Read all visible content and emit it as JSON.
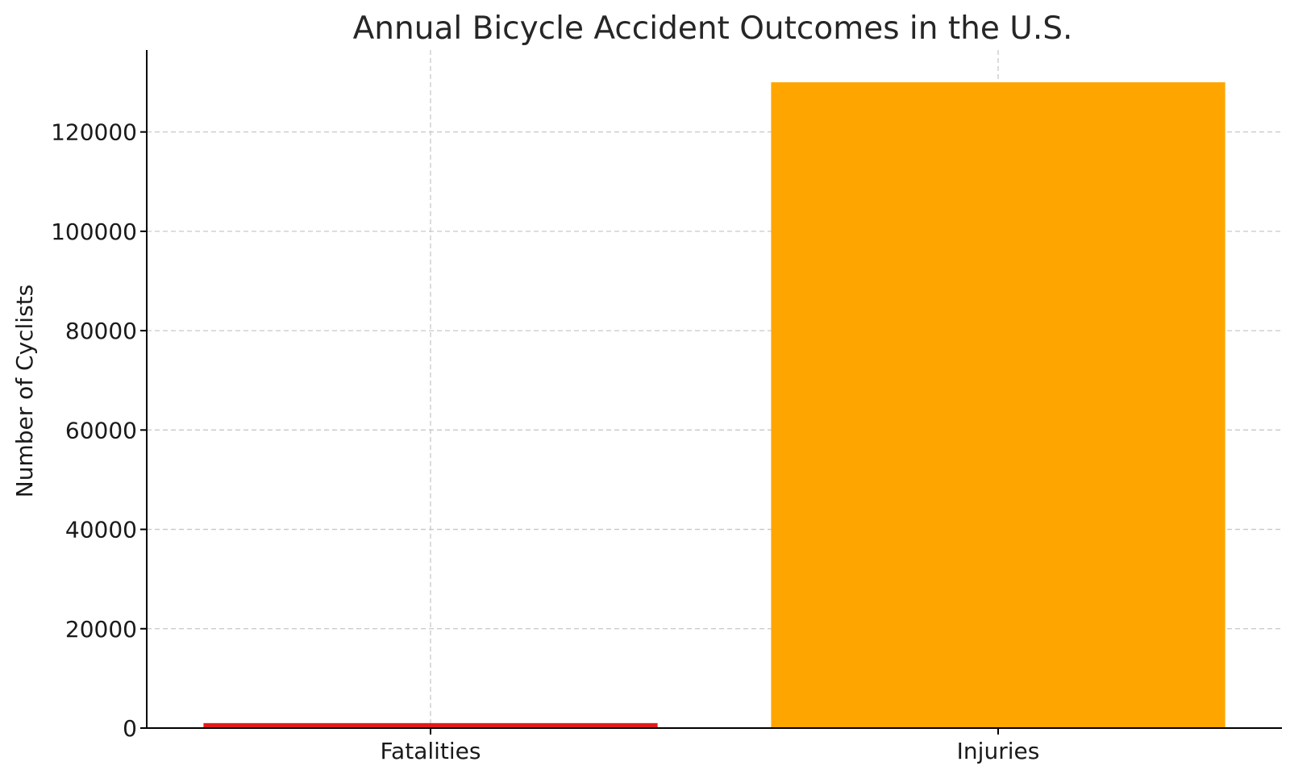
{
  "chart_data": {
    "type": "bar",
    "title": "Annual Bicycle Accident Outcomes in the U.S.",
    "xlabel": "",
    "ylabel": "Number of Cyclists",
    "categories": [
      "Fatalities",
      "Injuries"
    ],
    "values": [
      1000,
      130000
    ],
    "colors": [
      "#e31a1c",
      "#ffa500"
    ],
    "ylim": [
      0,
      136500
    ],
    "yticks": [
      0,
      20000,
      40000,
      60000,
      80000,
      100000,
      120000
    ],
    "grid": true
  }
}
